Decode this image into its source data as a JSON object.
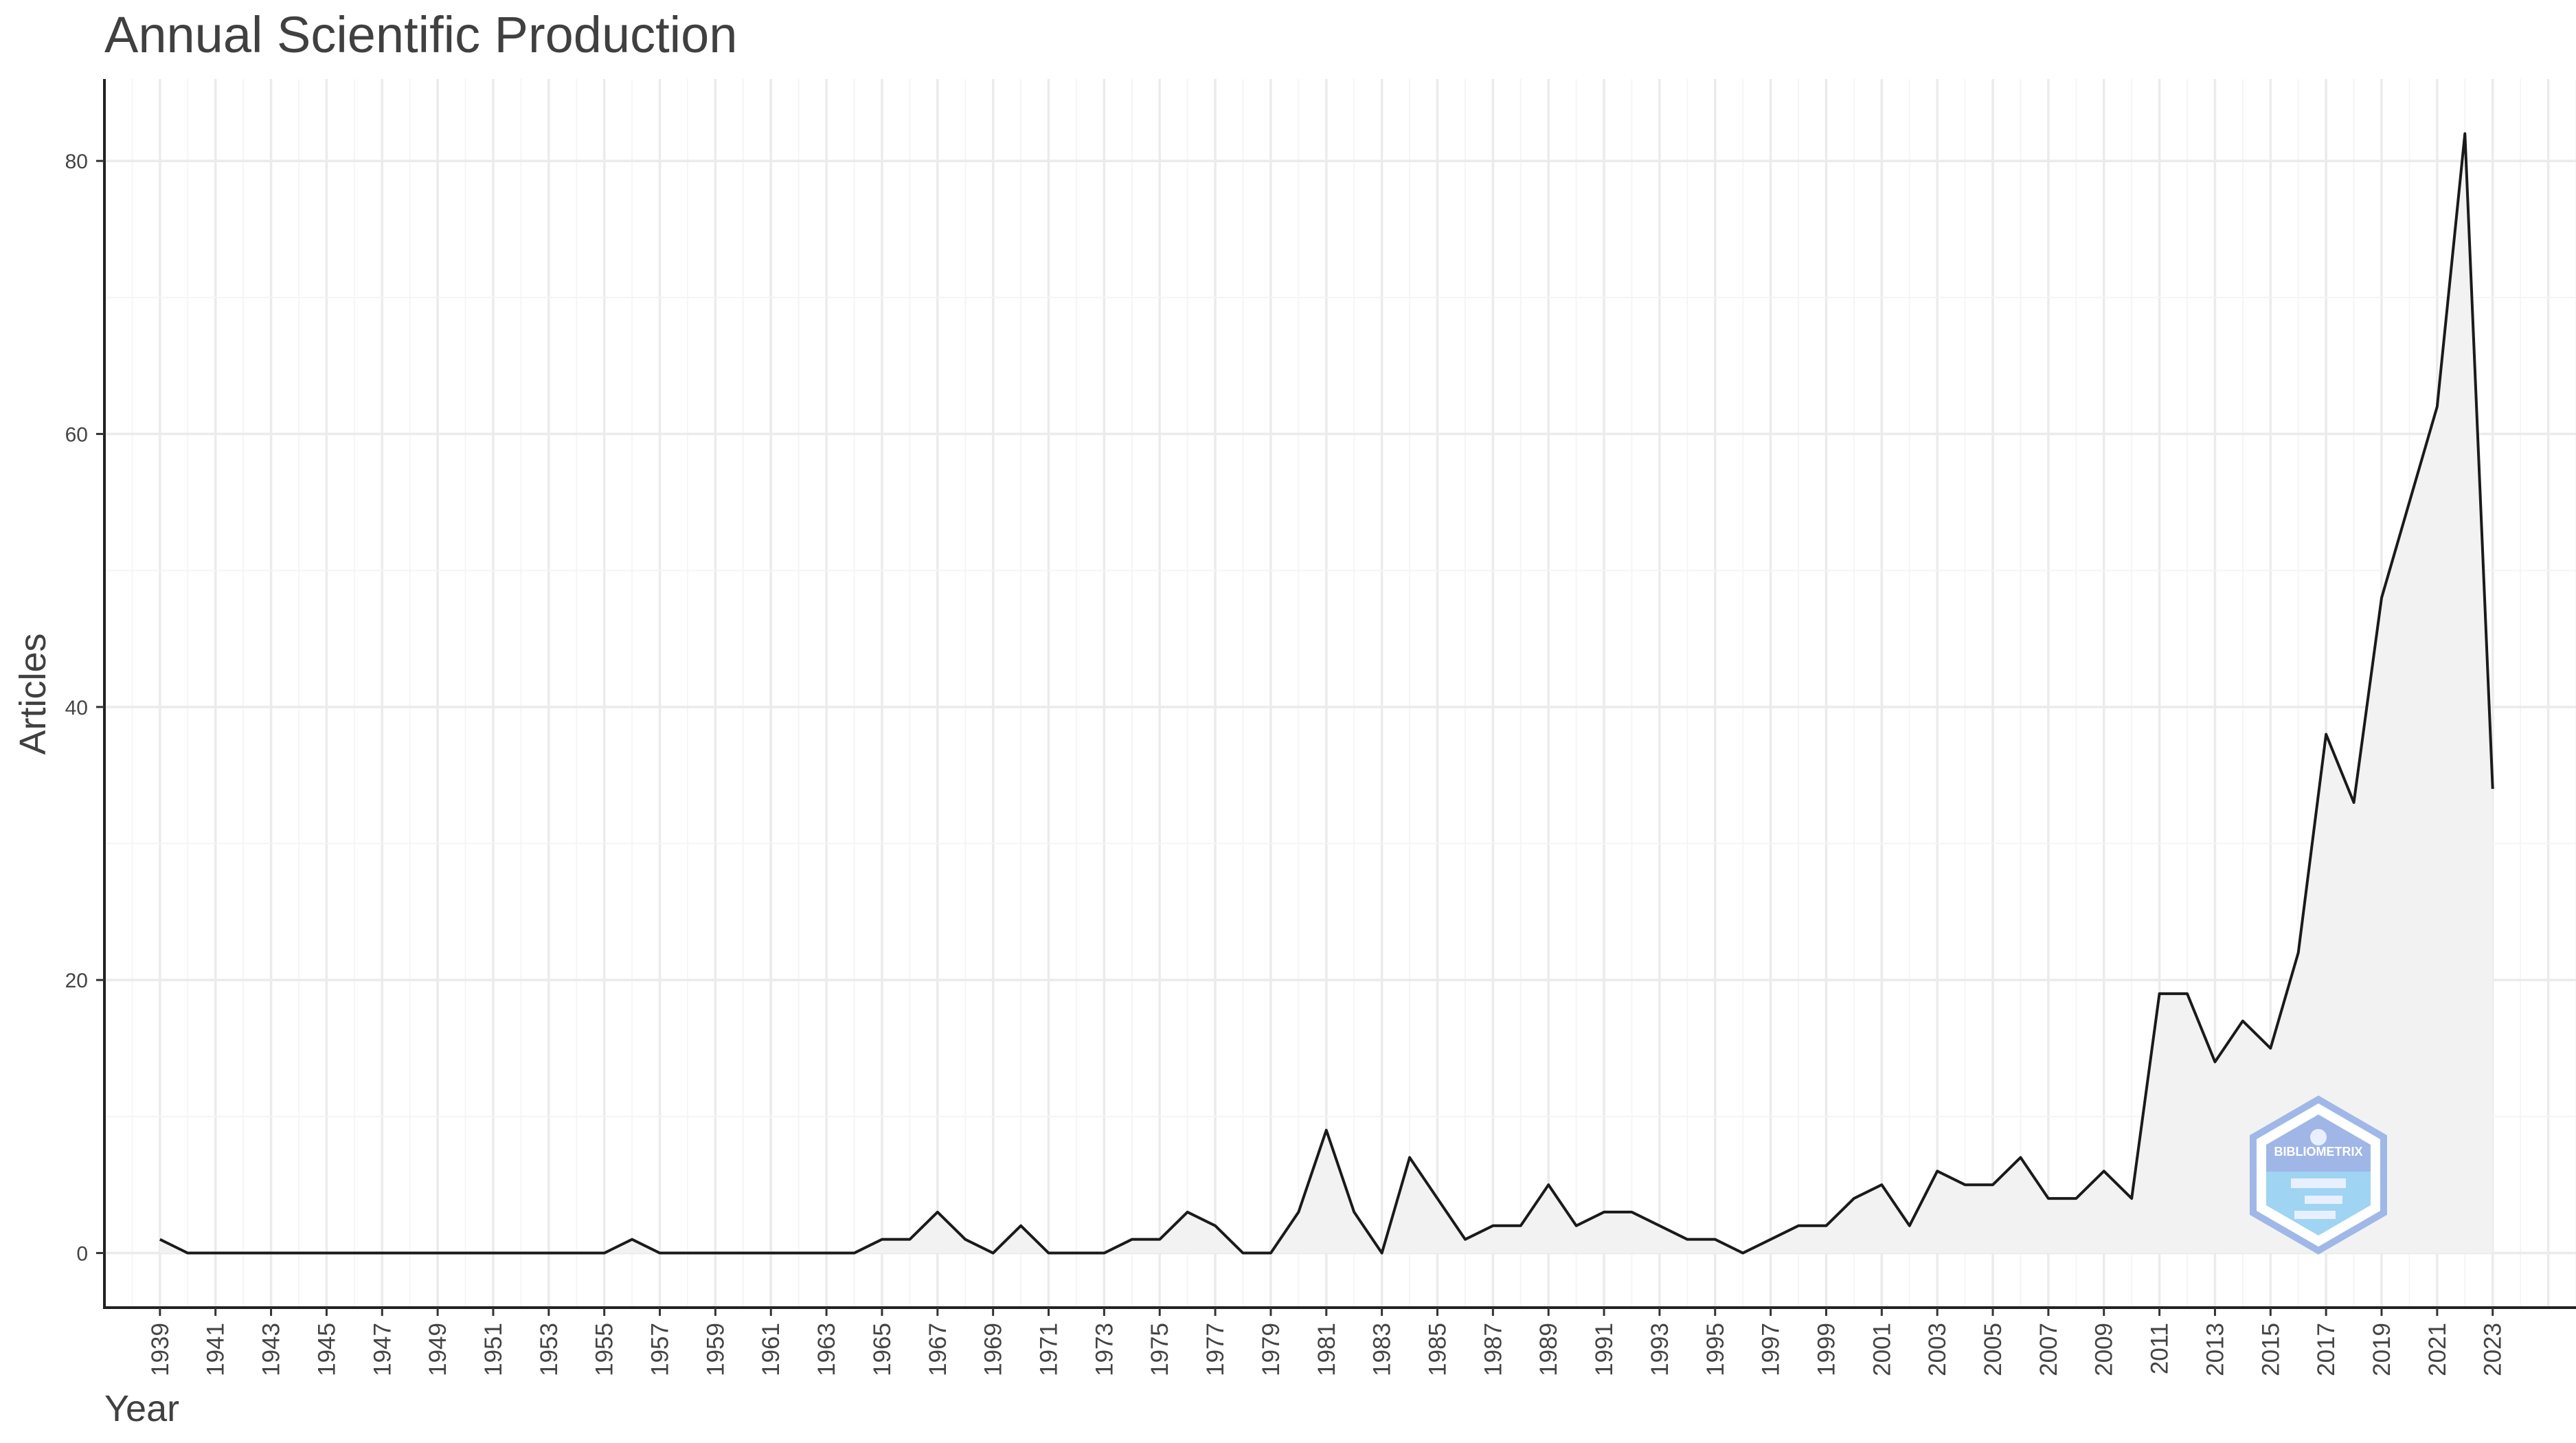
{
  "chart_data": {
    "type": "area",
    "title": "Annual Scientific Production",
    "xlabel": "Year",
    "ylabel": "Articles",
    "x": [
      1939,
      1940,
      1941,
      1942,
      1943,
      1944,
      1945,
      1946,
      1947,
      1948,
      1949,
      1950,
      1951,
      1952,
      1953,
      1954,
      1955,
      1956,
      1957,
      1958,
      1959,
      1960,
      1961,
      1962,
      1963,
      1964,
      1965,
      1966,
      1967,
      1968,
      1969,
      1970,
      1971,
      1972,
      1973,
      1974,
      1975,
      1976,
      1977,
      1978,
      1979,
      1980,
      1981,
      1982,
      1983,
      1984,
      1985,
      1986,
      1987,
      1988,
      1989,
      1990,
      1991,
      1992,
      1993,
      1994,
      1995,
      1996,
      1997,
      1998,
      1999,
      2000,
      2001,
      2002,
      2003,
      2004,
      2005,
      2006,
      2007,
      2008,
      2009,
      2010,
      2011,
      2012,
      2013,
      2014,
      2015,
      2016,
      2017,
      2018,
      2019,
      2020,
      2021,
      2022,
      2023
    ],
    "values": [
      1,
      0,
      0,
      0,
      0,
      0,
      0,
      0,
      0,
      0,
      0,
      0,
      0,
      0,
      0,
      0,
      0,
      1,
      0,
      0,
      0,
      0,
      0,
      0,
      0,
      0,
      1,
      1,
      3,
      1,
      0,
      2,
      0,
      0,
      0,
      1,
      1,
      3,
      2,
      0,
      0,
      3,
      9,
      3,
      0,
      7,
      4,
      1,
      2,
      2,
      5,
      2,
      3,
      3,
      2,
      1,
      1,
      0,
      1,
      2,
      2,
      4,
      5,
      2,
      6,
      5,
      5,
      7,
      4,
      4,
      6,
      4,
      19,
      19,
      14,
      17,
      15,
      22,
      38,
      33,
      48,
      55,
      62,
      82,
      34
    ],
    "x_tick_labels": [
      "1939",
      "1941",
      "1943",
      "1945",
      "1947",
      "1949",
      "1951",
      "1953",
      "1955",
      "1957",
      "1959",
      "1961",
      "1963",
      "1965",
      "1967",
      "1969",
      "1971",
      "1973",
      "1975",
      "1977",
      "1979",
      "1981",
      "1983",
      "1985",
      "1987",
      "1989",
      "1991",
      "1993",
      "1995",
      "1997",
      "1999",
      "2001",
      "2003",
      "2005",
      "2007",
      "2009",
      "2011",
      "2013",
      "2015",
      "2017",
      "2019",
      "2021",
      "2023"
    ],
    "y_ticks": [
      0,
      20,
      40,
      60,
      80
    ],
    "xlim": [
      1937,
      2026
    ],
    "ylim": [
      -4,
      86
    ],
    "grid": true,
    "legend": "none",
    "line_color": "#1a1a1a",
    "fill_color": "#f2f2f2",
    "watermark_text": "BIBLIOMETRIX"
  }
}
